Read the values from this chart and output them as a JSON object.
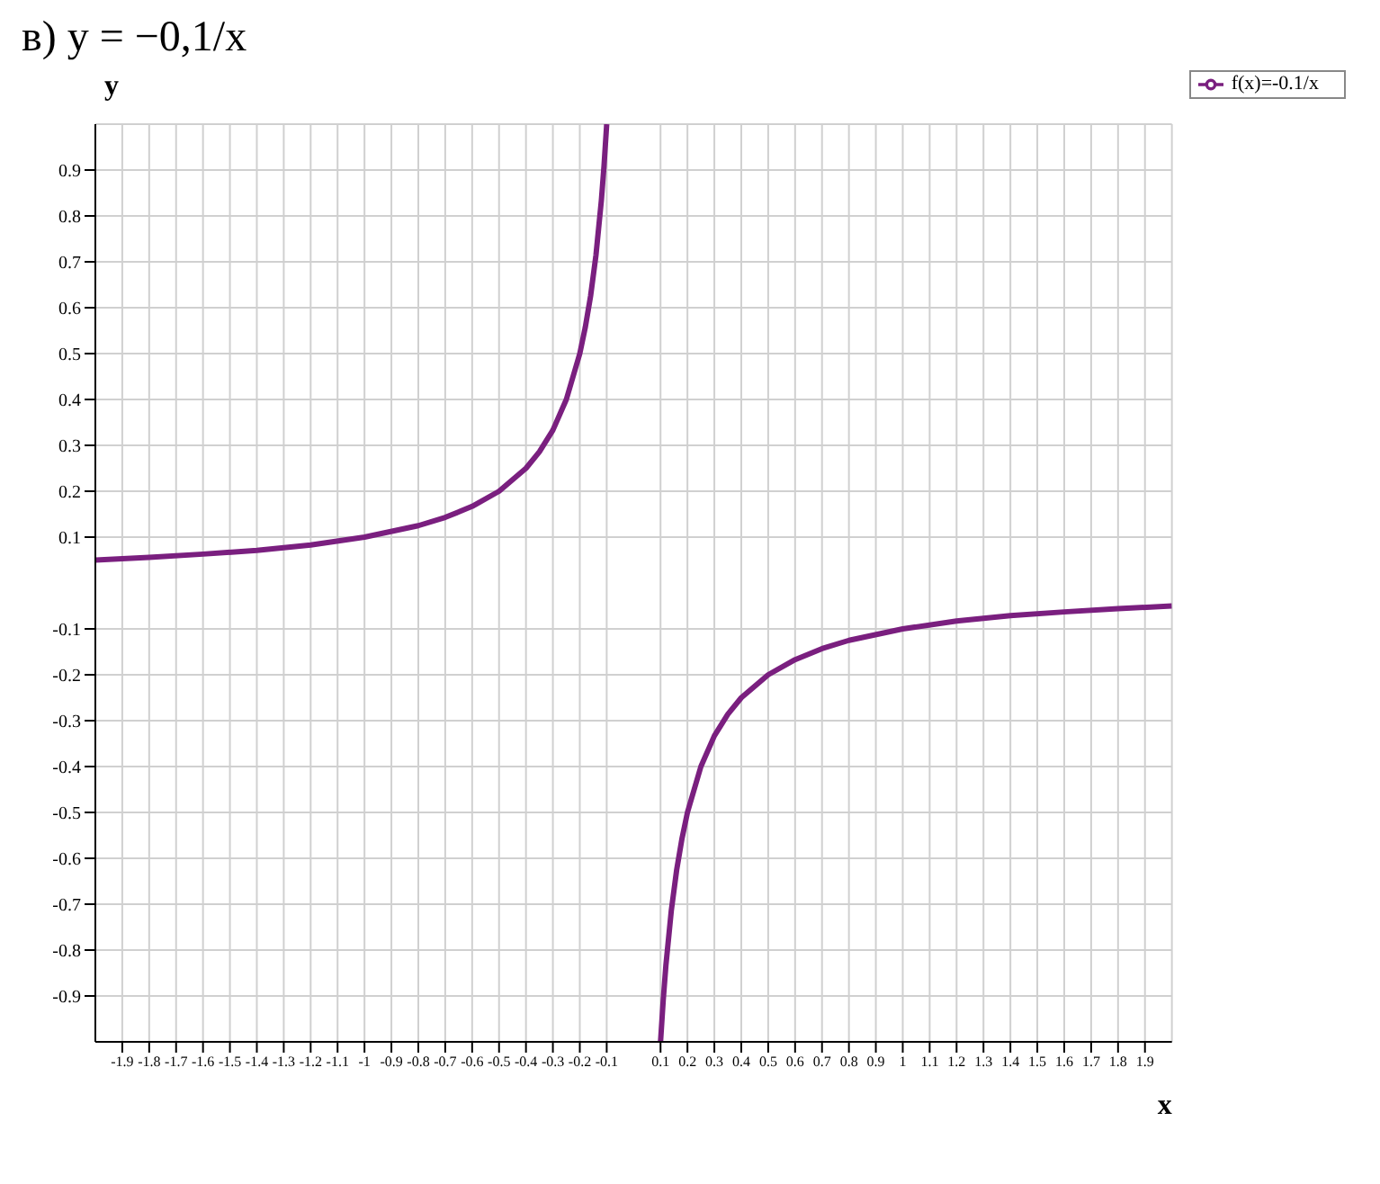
{
  "chart_data": {
    "type": "line",
    "title": "в) y = −0,1/x",
    "xlabel": "x",
    "ylabel": "y",
    "x": [
      -2,
      -1.8,
      -1.6,
      -1.4,
      -1.2,
      -1,
      -0.8,
      -0.7,
      -0.6,
      -0.5,
      -0.4,
      -0.35,
      -0.3,
      -0.25,
      -0.2,
      -0.18,
      -0.16,
      -0.14,
      -0.12,
      -0.11,
      -0.1,
      null,
      0.1,
      0.11,
      0.12,
      0.14,
      0.16,
      0.18,
      0.2,
      0.25,
      0.3,
      0.35,
      0.4,
      0.5,
      0.6,
      0.7,
      0.8,
      1,
      1.2,
      1.4,
      1.6,
      1.8,
      2
    ],
    "series": [
      {
        "name": "f(x)=-0.1/x",
        "color": "#7a1f7f",
        "values": [
          0.05,
          0.056,
          0.063,
          0.071,
          0.083,
          0.1,
          0.125,
          0.143,
          0.167,
          0.2,
          0.25,
          0.286,
          0.333,
          0.4,
          0.5,
          0.556,
          0.625,
          0.714,
          0.833,
          0.909,
          1,
          null,
          -1,
          -0.909,
          -0.833,
          -0.714,
          -0.625,
          -0.556,
          -0.5,
          -0.4,
          -0.333,
          -0.286,
          -0.25,
          -0.2,
          -0.167,
          -0.143,
          -0.125,
          -0.1,
          -0.083,
          -0.071,
          -0.063,
          -0.056,
          -0.05
        ]
      }
    ],
    "xlim": [
      -2,
      2
    ],
    "ylim": [
      -1,
      1
    ],
    "xticks": [
      -1.9,
      -1.8,
      -1.7,
      -1.6,
      -1.5,
      -1.4,
      -1.3,
      -1.2,
      -1.1,
      -1,
      -0.9,
      -0.8,
      -0.7,
      -0.6,
      -0.5,
      -0.4,
      -0.3,
      -0.2,
      -0.1,
      0.1,
      0.2,
      0.3,
      0.4,
      0.5,
      0.6,
      0.7,
      0.8,
      0.9,
      1,
      1.1,
      1.2,
      1.3,
      1.4,
      1.5,
      1.6,
      1.7,
      1.8,
      1.9
    ],
    "yticks": [
      -0.9,
      -0.8,
      -0.7,
      -0.6,
      -0.5,
      -0.4,
      -0.3,
      -0.2,
      -0.1,
      0.1,
      0.2,
      0.3,
      0.4,
      0.5,
      0.6,
      0.7,
      0.8,
      0.9
    ],
    "grid": true,
    "legend": "top right",
    "marker": "none",
    "line_style": "solid"
  }
}
